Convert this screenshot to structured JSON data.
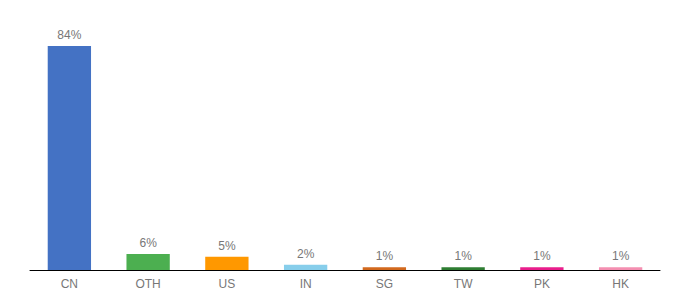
{
  "chart_data": {
    "type": "bar",
    "categories": [
      "CN",
      "OTH",
      "US",
      "IN",
      "SG",
      "TW",
      "PK",
      "HK"
    ],
    "values": [
      84,
      6,
      5,
      2,
      1,
      1,
      1,
      1
    ],
    "value_labels": [
      "84%",
      "6%",
      "5%",
      "2%",
      "1%",
      "1%",
      "1%",
      "1%"
    ],
    "colors": [
      "#4472c4",
      "#4caf50",
      "#ff9800",
      "#87ceeb",
      "#d2691e",
      "#2e7d32",
      "#e91e8c",
      "#f48fb1"
    ],
    "ylim": [
      0,
      90
    ],
    "grid": false,
    "data_labels": true,
    "tick_labels": "x"
  }
}
